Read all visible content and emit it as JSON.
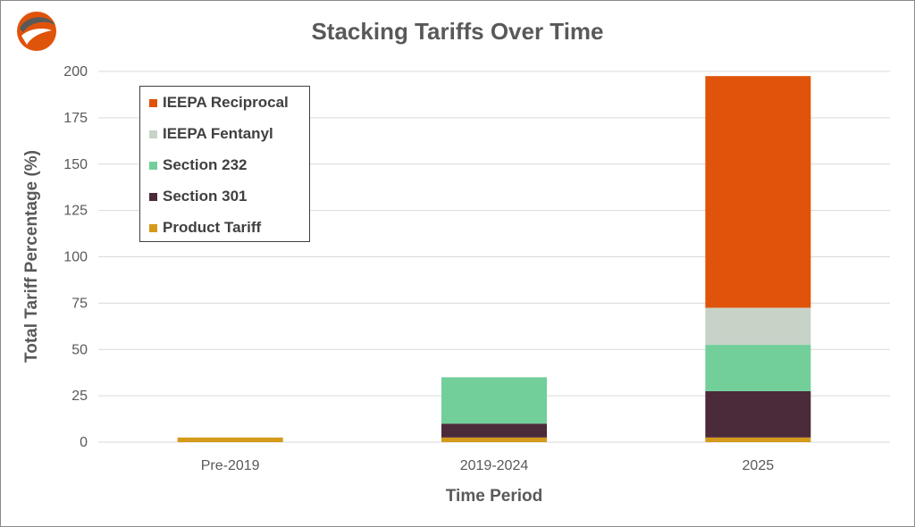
{
  "chart_data": {
    "type": "bar",
    "stacked": true,
    "title": "Stacking Tariffs Over Time",
    "xlabel": "Time Period",
    "ylabel": "Total Tariff Percentage (%)",
    "ylim": [
      0,
      200
    ],
    "yticks": [
      0,
      25,
      50,
      75,
      100,
      125,
      150,
      175,
      200
    ],
    "grid": true,
    "legend_position": "top-left",
    "categories": [
      "Pre-2019",
      "2019-2024",
      "2025"
    ],
    "series": [
      {
        "name": "Product Tariff",
        "color": "#d49a1a",
        "values": [
          2.5,
          2.5,
          2.5
        ]
      },
      {
        "name": "Section 301",
        "color": "#4b2a3a",
        "values": [
          0,
          7.5,
          25
        ]
      },
      {
        "name": "Section 232",
        "color": "#72cf9a",
        "values": [
          0,
          25,
          25
        ]
      },
      {
        "name": "IEEPA Fentanyl",
        "color": "#c8d3c8",
        "values": [
          0,
          0,
          20
        ]
      },
      {
        "name": "IEEPA Reciprocal",
        "color": "#e0530a",
        "values": [
          0,
          0,
          125
        ]
      }
    ],
    "legend_order": [
      "IEEPA Reciprocal",
      "IEEPA Fentanyl",
      "Section 232",
      "Section 301",
      "Product Tariff"
    ]
  },
  "logo": {
    "icon": "swoosh-logo-icon",
    "colors": [
      "#e0530a",
      "#595959"
    ]
  }
}
